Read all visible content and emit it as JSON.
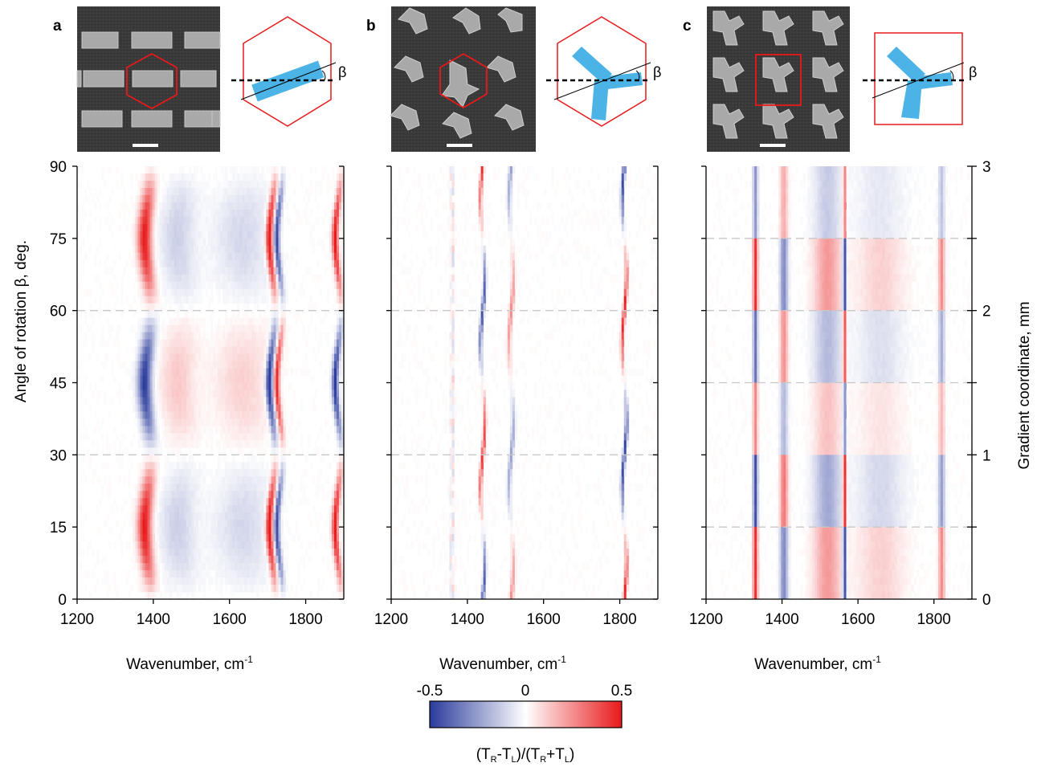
{
  "panels": [
    {
      "letter": "a",
      "unit_shape": "rectangle",
      "unit_cell": "hexagon"
    },
    {
      "letter": "b",
      "unit_shape": "tripod",
      "unit_cell": "hexagon"
    },
    {
      "letter": "c",
      "unit_shape": "tripod",
      "unit_cell": "square"
    }
  ],
  "beta_symbol": "β",
  "chart_data": [
    {
      "type": "heatmap",
      "panel": "a",
      "xlabel": "Wavenumber, cm",
      "xlabel_sup": "-1",
      "ylabel": "Angle of rotation β, deg.",
      "xlim": [
        1200,
        1900
      ],
      "ylim": [
        0,
        90
      ],
      "xticks": [
        1200,
        1400,
        1600,
        1800
      ],
      "yticks": [
        0,
        15,
        30,
        45,
        60,
        75,
        90
      ],
      "dashed_lines_y": [
        30,
        60
      ],
      "features": [
        {
          "x": 1385,
          "width": 18,
          "pattern": "sin3",
          "amp": 0.5
        },
        {
          "x": 1470,
          "width": 45,
          "pattern": "sin3",
          "amp": -0.12
        },
        {
          "x": 1640,
          "width": 70,
          "pattern": "sin3",
          "amp": -0.1
        },
        {
          "x": 1712,
          "width": 9,
          "pattern": "sin3",
          "amp": 0.55
        },
        {
          "x": 1732,
          "width": 7,
          "pattern": "sin3",
          "amp": -0.45
        },
        {
          "x": 1885,
          "width": 8,
          "pattern": "sin3",
          "amp": 0.5
        }
      ]
    },
    {
      "type": "heatmap",
      "panel": "b",
      "xlabel": "Wavenumber, cm",
      "xlabel_sup": "-1",
      "xlim": [
        1200,
        1900
      ],
      "ylim": [
        0,
        90
      ],
      "xticks": [
        1200,
        1400,
        1600,
        1800
      ],
      "dashed_lines_y": [
        30,
        60
      ],
      "features": [
        {
          "x": 1440,
          "width": 4,
          "pattern": "cos4",
          "amp": -0.45
        },
        {
          "x": 1515,
          "width": 5,
          "pattern": "cos4",
          "amp": 0.25
        },
        {
          "x": 1812,
          "width": 4,
          "pattern": "cos4",
          "amp": 0.5
        },
        {
          "x": 1360,
          "width": 6,
          "pattern": "noise",
          "amp": 0.12
        }
      ]
    },
    {
      "type": "heatmap",
      "panel": "c",
      "xlabel": "Wavenumber, cm",
      "xlabel_sup": "-1",
      "y2label": "Gradient coordinate, mm",
      "xlim": [
        1200,
        1900
      ],
      "ylim": [
        0,
        3
      ],
      "xticks": [
        1200,
        1400,
        1600,
        1800
      ],
      "y2ticks": [
        0,
        1,
        2,
        3
      ],
      "dashed_lines_y": [
        0.5,
        1.5,
        2.0,
        2.5
      ],
      "features": [
        {
          "x": 1330,
          "width": 6,
          "pattern": "steps",
          "amp": 0.45
        },
        {
          "x": 1405,
          "width": 10,
          "pattern": "steps",
          "amp": -0.3
        },
        {
          "x": 1520,
          "width": 35,
          "pattern": "steps",
          "amp": 0.22
        },
        {
          "x": 1565,
          "width": 5,
          "pattern": "steps",
          "amp": -0.5
        },
        {
          "x": 1660,
          "width": 60,
          "pattern": "steps",
          "amp": 0.1
        },
        {
          "x": 1820,
          "width": 8,
          "pattern": "steps",
          "amp": 0.25
        }
      ]
    }
  ],
  "colorbar": {
    "min_label": "-0.5",
    "mid_label": "0",
    "max_label": "0.5",
    "colors": [
      "#2b3b9c",
      "#ffffff",
      "#e8191a"
    ],
    "label": "(T_R-T_L)/(T_R+T_L)"
  },
  "colors": {
    "red": "#e8191a",
    "blue": "#2b3b9c",
    "cyan": "#4cb3e6",
    "sem_bg": "#3a3a3a",
    "sem_feature": "#a9a9a9",
    "dashed": "#c8c8c8"
  }
}
